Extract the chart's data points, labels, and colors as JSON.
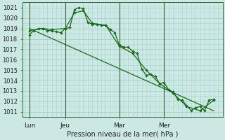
{
  "background_color": "#cce8e4",
  "grid_color": "#aad4cf",
  "line_color": "#1a6b1a",
  "title": "Pression niveau de la mer( hPa )",
  "ylim": [
    1010.5,
    1021.5
  ],
  "yticks": [
    1011,
    1012,
    1013,
    1014,
    1015,
    1016,
    1017,
    1018,
    1019,
    1020,
    1021
  ],
  "xtick_labels": [
    "Lun",
    "Jeu",
    "Mar",
    "Mer"
  ],
  "xtick_positions": [
    0,
    8,
    20,
    30
  ],
  "vline_positions": [
    0,
    8,
    20,
    30
  ],
  "xlim": [
    -1.5,
    43
  ],
  "series1_x": [
    0,
    1,
    2,
    3,
    4,
    5,
    6,
    7,
    8,
    9,
    10,
    11,
    12,
    13,
    14,
    15,
    16,
    17,
    18,
    19,
    20,
    21,
    22,
    23,
    24,
    25,
    26,
    27,
    28,
    29,
    30,
    31,
    32,
    33,
    34,
    35,
    36,
    37,
    38,
    39,
    40,
    41
  ],
  "series1_y": [
    1018.4,
    1018.8,
    1019.0,
    1019.0,
    1018.8,
    1018.8,
    1018.7,
    1018.6,
    1019.0,
    1019.1,
    1020.8,
    1021.0,
    1020.9,
    1019.6,
    1019.4,
    1019.4,
    1019.3,
    1019.3,
    1018.9,
    1018.6,
    1017.4,
    1017.2,
    1017.2,
    1016.8,
    1016.6,
    1015.1,
    1014.5,
    1014.6,
    1014.4,
    1013.7,
    1013.8,
    1013.1,
    1012.9,
    1012.2,
    1012.1,
    1011.6,
    1011.1,
    1011.4,
    1011.5,
    1011.1,
    1012.1,
    1012.2
  ],
  "series2_x": [
    0,
    3,
    5,
    8,
    10,
    12,
    14,
    17,
    20,
    23,
    26,
    29,
    32,
    35,
    38,
    41
  ],
  "series2_y": [
    1018.8,
    1019.0,
    1018.9,
    1019.0,
    1020.5,
    1020.7,
    1019.5,
    1019.3,
    1017.3,
    1016.6,
    1015.0,
    1013.7,
    1012.8,
    1011.5,
    1011.1,
    1012.1
  ],
  "trend_x": [
    0,
    41
  ],
  "trend_y": [
    1019.0,
    1011.1
  ]
}
